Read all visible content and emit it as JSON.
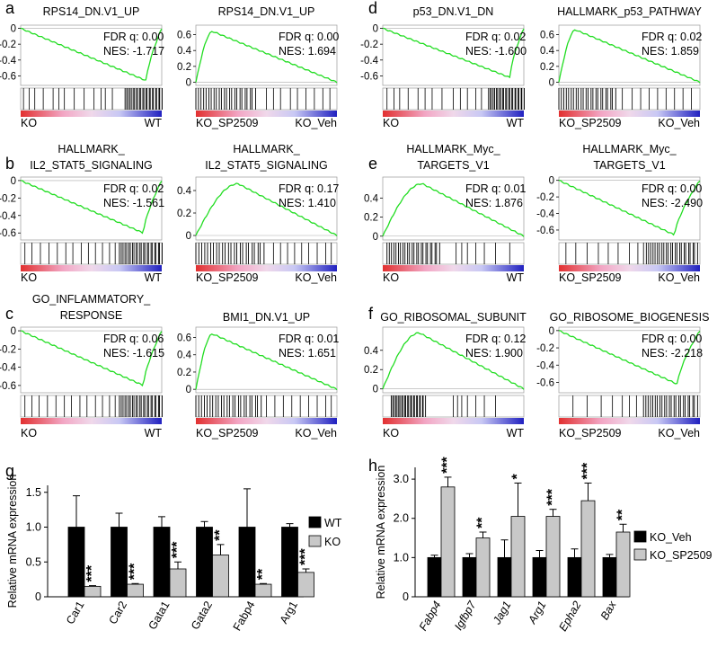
{
  "figure": {
    "gsea_panels": [
      {
        "letter": "a",
        "title_lines": [
          "RPS14_DN.V1_UP"
        ],
        "fdr": "FDR q: 0.00",
        "nes": "NES: -1.717",
        "left_label": "KO",
        "right_label": "WT",
        "y_ticks": [
          "0",
          "-0.2",
          "-0.4",
          "-0.6"
        ],
        "y_values": [
          0,
          -0.2,
          -0.4,
          -0.6
        ],
        "ylim": [
          -0.72,
          0.04
        ],
        "mode": "neg",
        "peak_x": 0.89,
        "extreme": -0.66,
        "hits_left": [
          0.02,
          0.06,
          0.1,
          0.16,
          0.23,
          0.27,
          0.31,
          0.38,
          0.45,
          0.52,
          0.57,
          0.6,
          0.65
        ],
        "dense_hits_right": [
          0.74,
          1.0
        ]
      },
      {
        "letter": "",
        "title_lines": [
          "RPS14_DN.V1_UP"
        ],
        "fdr": "FDR q: 0.00",
        "nes": "NES: 1.694",
        "left_label": "KO_SP2509",
        "right_label": "KO_Veh",
        "y_ticks": [
          "0.6",
          "0.4",
          "0.2",
          "0"
        ],
        "y_values": [
          0.6,
          0.4,
          0.2,
          0
        ],
        "ylim": [
          -0.04,
          0.72
        ],
        "mode": "pos",
        "peak_x": 0.12,
        "extreme": 0.64,
        "hits_left": [
          0.5,
          0.55,
          0.6,
          0.67,
          0.72,
          0.78,
          0.84,
          0.9,
          0.95
        ],
        "dense_hits_right": [
          0.0,
          0.42
        ]
      },
      {
        "letter": "d",
        "title_lines": [
          "p53_DN.V1_DN"
        ],
        "fdr": "FDR q: 0.02",
        "nes": "NES: -1.600",
        "left_label": "KO",
        "right_label": "WT",
        "y_ticks": [
          "0",
          "-0.2",
          "-0.4",
          "-0.6"
        ],
        "y_values": [
          0,
          -0.2,
          -0.4,
          -0.6
        ],
        "ylim": [
          -0.72,
          0.04
        ],
        "mode": "neg",
        "peak_x": 0.9,
        "extreme": -0.62,
        "hits_left": [
          0.03,
          0.08,
          0.12,
          0.18,
          0.25,
          0.3,
          0.35,
          0.42,
          0.5,
          0.55,
          0.6,
          0.66,
          0.7
        ],
        "dense_hits_right": [
          0.75,
          1.0
        ]
      },
      {
        "letter": "",
        "title_lines": [
          "HALLMARK_p53_PATHWAY"
        ],
        "fdr": "FDR q: 0.02",
        "nes": "NES: 1.859",
        "left_label": "KO_SP2509",
        "right_label": "KO_Veh",
        "y_ticks": [
          "0.6",
          "0.4",
          "0.2",
          "0"
        ],
        "y_values": [
          0.6,
          0.4,
          0.2,
          0
        ],
        "ylim": [
          -0.04,
          0.72
        ],
        "mode": "pos",
        "peak_x": 0.12,
        "extreme": 0.66,
        "hits_left": [
          0.45,
          0.52,
          0.58,
          0.64,
          0.7,
          0.76,
          0.82,
          0.88,
          0.94
        ],
        "dense_hits_right": [
          0.0,
          0.4
        ]
      },
      {
        "letter": "b",
        "title_lines": [
          "HALLMARK_",
          "IL2_STAT5_SIGNALING"
        ],
        "fdr": "FDR q: 0.02",
        "nes": "NES: -1.561",
        "left_label": "KO",
        "right_label": "WT",
        "y_ticks": [
          "0",
          "-0.2",
          "-0.4",
          "-0.6"
        ],
        "y_values": [
          0,
          -0.2,
          -0.4,
          -0.6
        ],
        "ylim": [
          -0.68,
          0.04
        ],
        "mode": "neg",
        "peak_x": 0.87,
        "extreme": -0.6,
        "hits_left": [
          0.03,
          0.08,
          0.14,
          0.2,
          0.26,
          0.32,
          0.37,
          0.43,
          0.48,
          0.53,
          0.58,
          0.63,
          0.67
        ],
        "dense_hits_right": [
          0.7,
          1.0
        ]
      },
      {
        "letter": "",
        "title_lines": [
          "HALLMARK_",
          "IL2_STAT5_SIGNALING"
        ],
        "fdr": "FDR q: 0.17",
        "nes": "NES: 1.410",
        "left_label": "KO_SP2509",
        "right_label": "KO_Veh",
        "y_ticks": [
          "0.4",
          "0.2",
          "0"
        ],
        "y_values": [
          0.4,
          0.2,
          0
        ],
        "ylim": [
          -0.04,
          0.52
        ],
        "mode": "pos",
        "peak_x": 0.3,
        "extreme": 0.46,
        "hits_left": [
          0.55,
          0.6,
          0.65,
          0.7,
          0.75,
          0.8,
          0.86,
          0.92,
          0.96
        ],
        "dense_hits_right": [
          0.0,
          0.48
        ]
      },
      {
        "letter": "e",
        "title_lines": [
          "HALLMARK_Myc_",
          "TARGETS_V1"
        ],
        "fdr": "FDR q: 0.01",
        "nes": "NES: 1.876",
        "left_label": "KO",
        "right_label": "WT",
        "y_ticks": [
          "0.4",
          "0.2",
          "0"
        ],
        "y_values": [
          0.4,
          0.2,
          0
        ],
        "ylim": [
          -0.04,
          0.62
        ],
        "mode": "pos",
        "peak_x": 0.28,
        "extreme": 0.55,
        "hits_left": [
          0.52,
          0.56,
          0.6,
          0.66,
          0.72,
          0.8,
          0.9
        ],
        "dense_hits_right": [
          0.03,
          0.4
        ]
      },
      {
        "letter": "",
        "title_lines": [
          "HALLMARK_Myc_",
          "TARGETS_V1"
        ],
        "fdr": "FDR q: 0.00",
        "nes": "NES: -2.490",
        "left_label": "KO_SP2509",
        "right_label": "KO_Veh",
        "y_ticks": [
          "0",
          "-0.2",
          "-0.4",
          "-0.6"
        ],
        "y_values": [
          0,
          -0.2,
          -0.4,
          -0.6
        ],
        "ylim": [
          -0.72,
          0.04
        ],
        "mode": "neg",
        "peak_x": 0.82,
        "extreme": -0.66,
        "hits_left": [
          0.05,
          0.12,
          0.2,
          0.28,
          0.35,
          0.42,
          0.5,
          0.56,
          0.6
        ],
        "dense_hits_right": [
          0.62,
          0.98
        ]
      },
      {
        "letter": "c",
        "title_lines": [
          "GO_INFLAMMATORY_",
          "RESPONSE"
        ],
        "fdr": "FDR q: 0.06",
        "nes": "NES: -1.615",
        "left_label": "KO",
        "right_label": "WT",
        "y_ticks": [
          "0",
          "-0.2",
          "-0.4",
          "-0.6"
        ],
        "y_values": [
          0,
          -0.2,
          -0.4,
          -0.6
        ],
        "ylim": [
          -0.68,
          0.04
        ],
        "mode": "neg",
        "peak_x": 0.87,
        "extreme": -0.6,
        "hits_left": [
          0.03,
          0.08,
          0.13,
          0.19,
          0.25,
          0.31,
          0.36,
          0.42,
          0.47,
          0.53,
          0.58,
          0.63,
          0.67
        ],
        "dense_hits_right": [
          0.7,
          1.0
        ]
      },
      {
        "letter": "",
        "title_lines": [
          "BMI1_DN.V1_UP"
        ],
        "fdr": "FDR q: 0.01",
        "nes": "NES: 1.651",
        "left_label": "KO_SP2509",
        "right_label": "KO_Veh",
        "y_ticks": [
          "0.6",
          "0.4",
          "0.2",
          "0"
        ],
        "y_values": [
          0.6,
          0.4,
          0.2,
          0
        ],
        "ylim": [
          -0.04,
          0.72
        ],
        "mode": "pos",
        "peak_x": 0.12,
        "extreme": 0.64,
        "hits_left": [
          0.5,
          0.56,
          0.62,
          0.68,
          0.74,
          0.8,
          0.86,
          0.92,
          0.96
        ],
        "dense_hits_right": [
          0.0,
          0.46
        ]
      },
      {
        "letter": "f",
        "title_lines": [
          "GO_RIBOSOMAL_SUBUNIT"
        ],
        "fdr": "FDR q: 0.12",
        "nes": "NES: 1.900",
        "left_label": "KO",
        "right_label": "WT",
        "y_ticks": [
          "0.4",
          "0.2",
          "0"
        ],
        "y_values": [
          0.4,
          0.2,
          0
        ],
        "ylim": [
          -0.04,
          0.64
        ],
        "mode": "pos",
        "peak_x": 0.26,
        "extreme": 0.58,
        "hits_left": [
          0.5,
          0.53,
          0.56,
          0.6,
          0.66,
          0.72,
          0.8
        ],
        "dense_hits_right": [
          0.06,
          0.3
        ]
      },
      {
        "letter": "",
        "title_lines": [
          "GO_RIBOSOME_BIOGENESIS"
        ],
        "fdr": "FDR q: 0.00",
        "nes": "NES: -2.218",
        "left_label": "KO_SP2509",
        "right_label": "KO_Veh",
        "y_ticks": [
          "0",
          "-0.2",
          "-0.4",
          "-0.6"
        ],
        "y_values": [
          0,
          -0.2,
          -0.4,
          -0.6
        ],
        "ylim": [
          -0.72,
          0.04
        ],
        "mode": "neg",
        "peak_x": 0.84,
        "extreme": -0.62,
        "hits_left": [
          0.1,
          0.2,
          0.3,
          0.38,
          0.45,
          0.5,
          0.55
        ],
        "dense_hits_right": [
          0.6,
          0.98
        ]
      }
    ],
    "colors": {
      "enrichment_line": "#22dd22",
      "bar_dark": "#000000",
      "bar_light": "#c8c8c8"
    }
  },
  "chart_data": [
    {
      "type": "bar",
      "panel": "g",
      "title": "",
      "xlabel": "",
      "ylabel": "Relative mRNA expression",
      "ylim": [
        0,
        1.6
      ],
      "y_ticks": [
        "0",
        "0.5",
        "1.0",
        "1.5"
      ],
      "y_tick_values": [
        0,
        0.5,
        1.0,
        1.5
      ],
      "categories": [
        "Car1",
        "Car2",
        "Gata1",
        "Gata2",
        "Fabp4",
        "Arg1"
      ],
      "significance": [
        "***",
        "***",
        "***",
        "**",
        "**",
        "***"
      ],
      "series": [
        {
          "name": "WT",
          "values": [
            1.0,
            1.0,
            1.0,
            1.0,
            1.0,
            1.0
          ],
          "errors": [
            0.45,
            0.2,
            0.15,
            0.08,
            0.55,
            0.05
          ]
        },
        {
          "name": "KO",
          "values": [
            0.15,
            0.18,
            0.4,
            0.6,
            0.18,
            0.35
          ],
          "errors": [
            0.01,
            0.01,
            0.1,
            0.15,
            0.01,
            0.05
          ]
        }
      ],
      "legend": "right"
    },
    {
      "type": "bar",
      "panel": "h",
      "title": "",
      "xlabel": "",
      "ylabel": "Relative mRNA expression",
      "ylim": [
        0,
        3.3
      ],
      "y_ticks": [
        "0",
        "1.0",
        "2.0",
        "3.0"
      ],
      "y_tick_values": [
        0,
        1.0,
        2.0,
        3.0
      ],
      "categories": [
        "Fabp4",
        "Igfbp7",
        "Jag1",
        "Arg1",
        "Epha2",
        "Bax"
      ],
      "significance": [
        "***",
        "**",
        "*",
        "***",
        "***",
        "**"
      ],
      "series": [
        {
          "name": "KO_Veh",
          "values": [
            1.0,
            1.0,
            1.0,
            1.0,
            1.0,
            1.0
          ],
          "errors": [
            0.06,
            0.1,
            0.45,
            0.18,
            0.22,
            0.08
          ]
        },
        {
          "name": "KO_SP2509",
          "values": [
            2.8,
            1.5,
            2.05,
            2.05,
            2.45,
            1.65
          ],
          "errors": [
            0.25,
            0.15,
            0.85,
            0.18,
            0.45,
            0.2
          ]
        }
      ],
      "legend": "right"
    }
  ]
}
